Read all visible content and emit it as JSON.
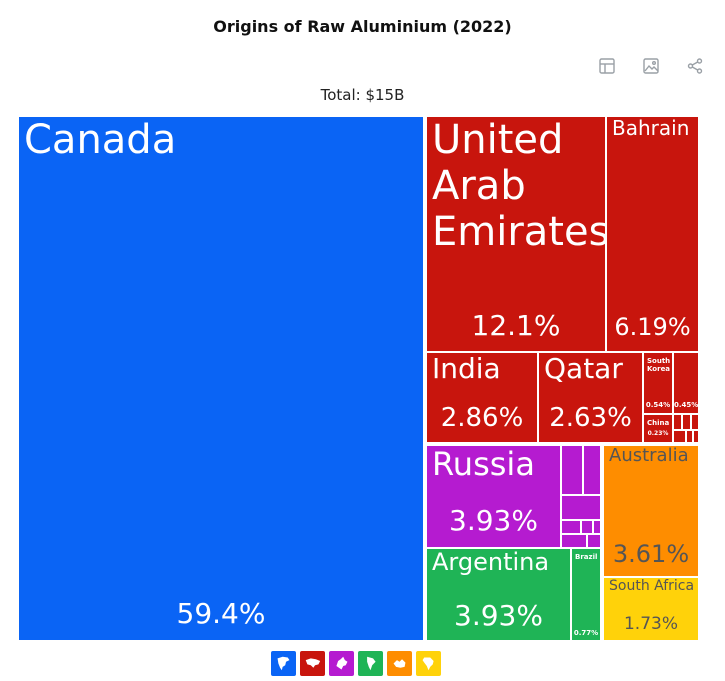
{
  "header": {
    "title": "Origins of Raw Aluminium (2022)",
    "subtitle": "Total: $15B"
  },
  "toolbar": {
    "icons": [
      "table-icon",
      "image-icon",
      "share-icon"
    ]
  },
  "colors": {
    "north_america": "#0a64f5",
    "asia": "#c8150d",
    "europe": "#b51bd0",
    "south_america": "#1fb456",
    "oceania": "#fe8d00",
    "africa": "#ffd20a"
  },
  "legend": [
    {
      "name": "north-america-icon",
      "color": "#0a64f5"
    },
    {
      "name": "asia-icon",
      "color": "#c8150d"
    },
    {
      "name": "europe-icon",
      "color": "#b51bd0"
    },
    {
      "name": "south-america-icon",
      "color": "#1fb456"
    },
    {
      "name": "oceania-icon",
      "color": "#fe8d00"
    },
    {
      "name": "africa-icon",
      "color": "#ffd20a"
    }
  ],
  "chart_data": {
    "type": "treemap",
    "title": "Origins of Raw Aluminium (2022)",
    "subtitle": "Total: $15B",
    "unit": "%",
    "items": [
      {
        "label": "Canada",
        "value": 59.4,
        "display": "59.4%",
        "group": "north_america"
      },
      {
        "label": "United Arab Emirates",
        "value": 12.1,
        "display": "12.1%",
        "group": "asia"
      },
      {
        "label": "Bahrain",
        "value": 6.19,
        "display": "6.19%",
        "group": "asia"
      },
      {
        "label": "India",
        "value": 2.86,
        "display": "2.86%",
        "group": "asia"
      },
      {
        "label": "Qatar",
        "value": 2.63,
        "display": "2.63%",
        "group": "asia"
      },
      {
        "label": "South Korea",
        "value": 0.54,
        "display": "0.54%",
        "group": "asia"
      },
      {
        "label": "",
        "value": 0.45,
        "display": "0.45%",
        "group": "asia"
      },
      {
        "label": "China",
        "value": 0.23,
        "display": "0.23%",
        "group": "asia"
      },
      {
        "label": "Russia",
        "value": 3.93,
        "display": "3.93%",
        "group": "europe"
      },
      {
        "label": "Argentina",
        "value": 3.93,
        "display": "3.93%",
        "group": "south_america"
      },
      {
        "label": "Brazil",
        "value": 0.77,
        "display": "0.77%",
        "group": "south_america"
      },
      {
        "label": "Australia",
        "value": 3.61,
        "display": "3.61%",
        "group": "oceania"
      },
      {
        "label": "South Africa",
        "value": 1.73,
        "display": "1.73%",
        "group": "africa"
      }
    ]
  }
}
